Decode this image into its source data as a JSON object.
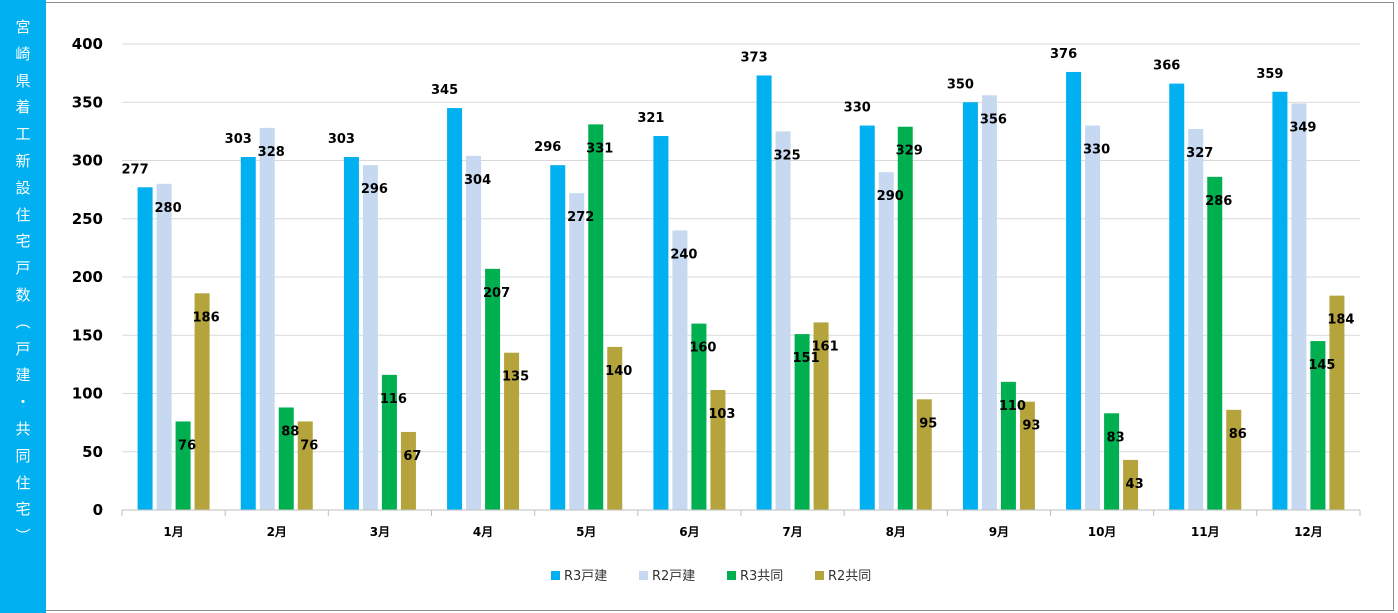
{
  "side_label": "宮崎県着工新設住宅戸数（戸建・共同住宅）",
  "chart_data": {
    "type": "bar",
    "title": "",
    "xlabel": "",
    "ylabel": "宮崎県着工新設住宅戸数（戸建・共同住宅）",
    "categories": [
      "1月",
      "2月",
      "3月",
      "4月",
      "5月",
      "6月",
      "7月",
      "8月",
      "9月",
      "10月",
      "11月",
      "12月"
    ],
    "series": [
      {
        "name": "R3戸建",
        "color": "#00b0f0",
        "values": [
          277,
          303,
          303,
          345,
          296,
          321,
          373,
          330,
          350,
          376,
          366,
          359
        ]
      },
      {
        "name": "R2戸建",
        "color": "#c6d9f1",
        "values": [
          280,
          328,
          296,
          304,
          272,
          240,
          325,
          290,
          356,
          330,
          327,
          349
        ]
      },
      {
        "name": "R3共同",
        "color": "#00b050",
        "values": [
          76,
          88,
          116,
          207,
          331,
          160,
          151,
          329,
          110,
          83,
          286,
          145
        ]
      },
      {
        "name": "R2共同",
        "color": "#b5a33b",
        "values": [
          186,
          76,
          67,
          135,
          140,
          103,
          161,
          95,
          93,
          43,
          86,
          184
        ]
      }
    ],
    "ylim": [
      0,
      400
    ],
    "yticks": [
      0,
      50,
      100,
      150,
      200,
      250,
      300,
      350,
      400
    ],
    "grid": true,
    "legend_position": "bottom"
  }
}
